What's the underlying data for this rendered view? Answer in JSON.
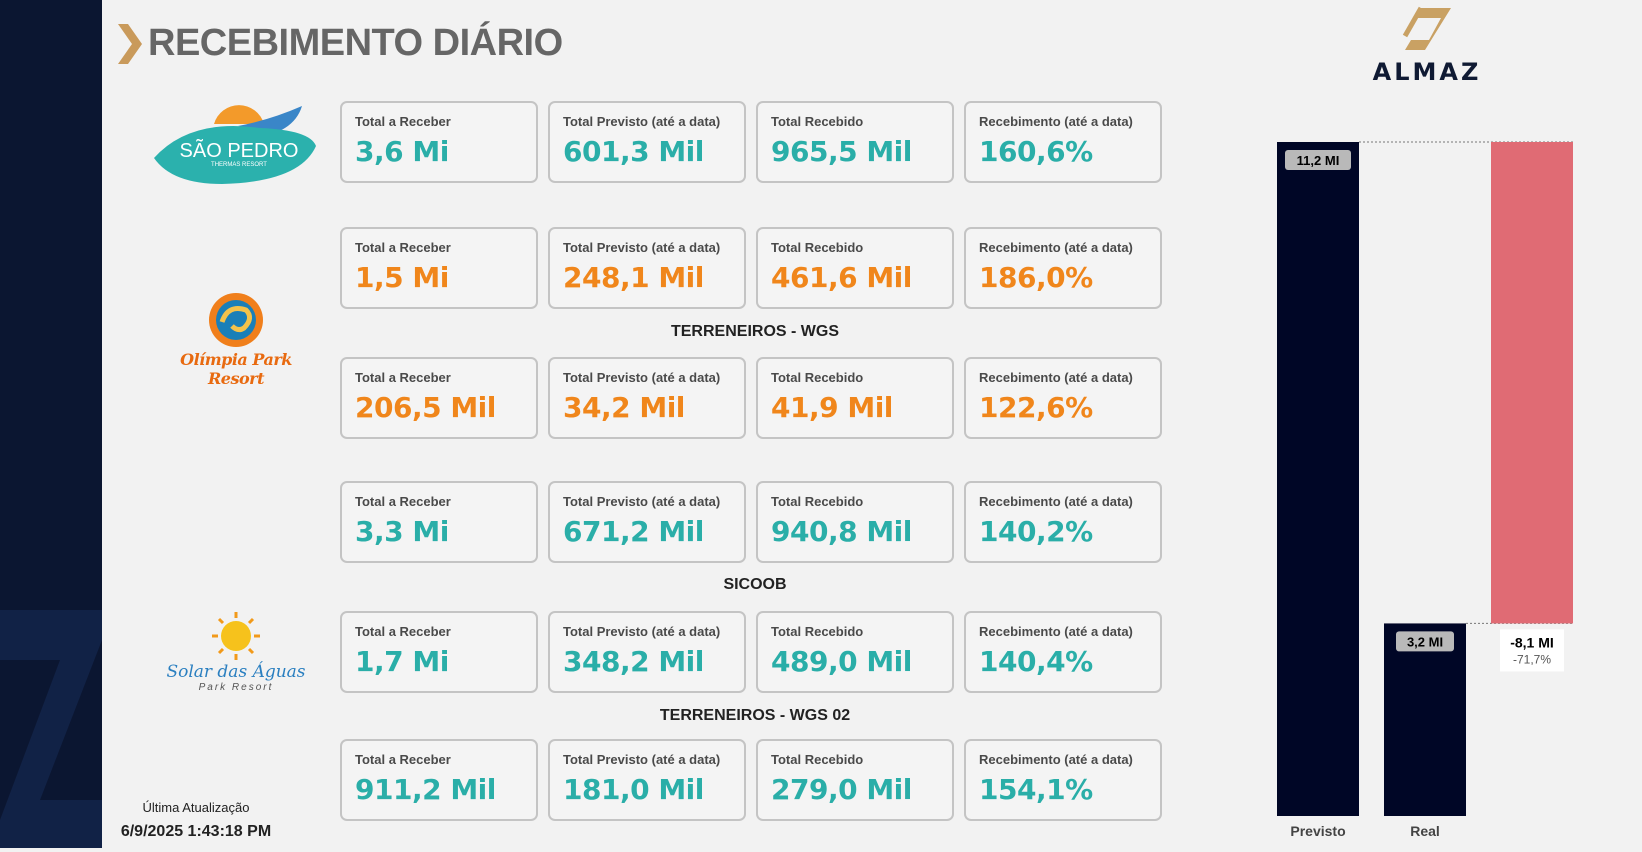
{
  "page": {
    "title": "RECEBIMENTO DIÁRIO"
  },
  "brand": {
    "name": "ALMAZ",
    "logo_icon": "almaz-logo-icon"
  },
  "logos": {
    "sao_pedro": {
      "main": "SÃO PEDRO",
      "sub": "THERMAS RESORT"
    },
    "olimpia": {
      "main": "Olímpia Park Resort"
    },
    "solar": {
      "main": "Solar das Águas",
      "sub": "Park Resort"
    }
  },
  "sections": {
    "terreneiros_wgs": "TERRENEIROS - WGS",
    "sicoob": "SICOOB",
    "terreneiros_wgs_02": "TERRENEIROS - WGS 02"
  },
  "rows": [
    {
      "color": "teal",
      "cards": [
        {
          "label": "Total a Receber",
          "value": "3,6 Mi"
        },
        {
          "label": "Total Previsto (até a data)",
          "value": "601,3 Mil"
        },
        {
          "label": "Total Recebido",
          "value": "965,5 Mil"
        },
        {
          "label": "Recebimento (até a data)",
          "value": "160,6%"
        }
      ]
    },
    {
      "color": "orange",
      "cards": [
        {
          "label": "Total a Receber",
          "value": "1,5 Mi"
        },
        {
          "label": "Total Previsto (até a data)",
          "value": "248,1 Mil"
        },
        {
          "label": "Total Recebido",
          "value": "461,6 Mil"
        },
        {
          "label": "Recebimento (até a data)",
          "value": "186,0%"
        }
      ]
    },
    {
      "color": "orange",
      "cards": [
        {
          "label": "Total a Receber",
          "value": "206,5 Mil"
        },
        {
          "label": "Total Previsto (até a data)",
          "value": "34,2 Mil"
        },
        {
          "label": "Total Recebido",
          "value": "41,9 Mil"
        },
        {
          "label": "Recebimento (até a data)",
          "value": "122,6%"
        }
      ]
    },
    {
      "color": "teal",
      "cards": [
        {
          "label": "Total a Receber",
          "value": "3,3 Mi"
        },
        {
          "label": "Total Previsto (até a data)",
          "value": "671,2 Mil"
        },
        {
          "label": "Total Recebido",
          "value": "940,8 Mil"
        },
        {
          "label": "Recebimento (até a data)",
          "value": "140,2%"
        }
      ]
    },
    {
      "color": "teal",
      "cards": [
        {
          "label": "Total a Receber",
          "value": "1,7 Mi"
        },
        {
          "label": "Total Previsto (até a data)",
          "value": "348,2 Mil"
        },
        {
          "label": "Total Recebido",
          "value": "489,0 Mil"
        },
        {
          "label": "Recebimento (até a data)",
          "value": "140,4%"
        }
      ]
    },
    {
      "color": "teal",
      "cards": [
        {
          "label": "Total a Receber",
          "value": "911,2 Mil"
        },
        {
          "label": "Total Previsto (até a data)",
          "value": "181,0 Mil"
        },
        {
          "label": "Total Recebido",
          "value": "279,0 Mil"
        },
        {
          "label": "Recebimento (até a data)",
          "value": "154,1%"
        }
      ]
    }
  ],
  "update": {
    "label": "Última Atualização",
    "timestamp": "6/9/2025 1:43:18 PM"
  },
  "colors": {
    "teal": "#2aaea8",
    "orange": "#f0861b",
    "navy": "#000626",
    "loss": "#e06b74",
    "sidebar": "#0b1631"
  },
  "chart_data": {
    "type": "waterfall",
    "categories": [
      "Previsto",
      "Real"
    ],
    "values": [
      11.2,
      3.2
    ],
    "value_labels": [
      "11,2 MI",
      "3,2 MI"
    ],
    "difference": {
      "value": -8.1,
      "label": "-8,1 MI",
      "pct_label": "-71,7%"
    },
    "ylim": [
      0,
      11.2
    ]
  }
}
